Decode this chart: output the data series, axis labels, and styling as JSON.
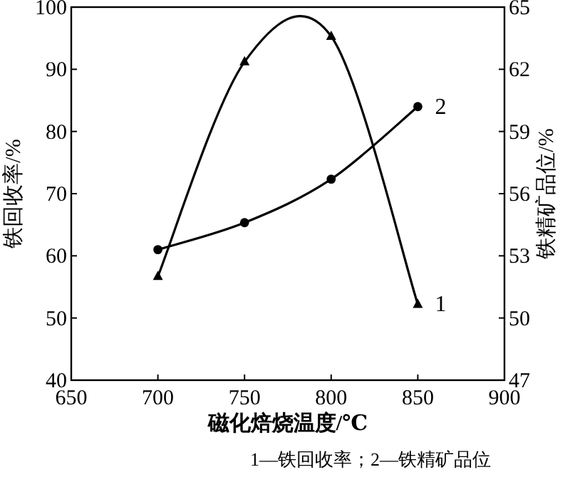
{
  "chart_data": {
    "type": "line",
    "xlabel": "磁化焙烧温度/℃",
    "ylabel": "铁回收率/%",
    "y2label": "铁精矿品位/%",
    "x": [
      700,
      750,
      800,
      850
    ],
    "series": [
      {
        "color": "#000000",
        "values": [
          56.7,
          91.2,
          95.3,
          52.2
        ],
        "marker": "triangle"
      },
      {
        "color": "#000000",
        "values": [
          53.3,
          54.6,
          56.7,
          60.2
        ],
        "marker": "circle",
        "axis": "y2"
      }
    ],
    "xlim": [
      650,
      900
    ],
    "xticks": [
      650,
      700,
      750,
      800,
      850,
      900
    ],
    "ylim": [
      40,
      100
    ],
    "yticks": [
      40,
      50,
      60,
      70,
      80,
      90,
      100
    ],
    "y2lim": [
      47,
      65
    ],
    "y2ticks": [
      47,
      50,
      53,
      56,
      59,
      62,
      65
    ],
    "grid": false,
    "annotations": [
      {
        "text": "1",
        "x": 850,
        "y": 52.2
      },
      {
        "text": "2",
        "x": 850,
        "y": 84
      },
      "1—铁回收率；2—铁精矿品位"
    ]
  }
}
